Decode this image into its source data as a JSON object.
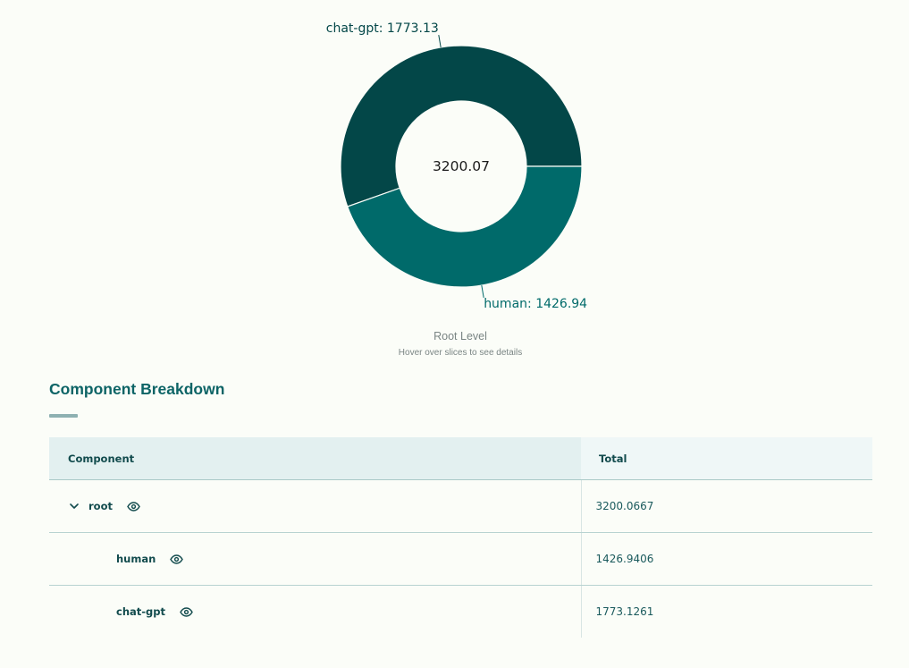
{
  "chart_data": {
    "type": "pie",
    "donut": true,
    "center_value": "3200.07",
    "slices": [
      {
        "label": "chat-gpt",
        "value": 1773.13,
        "display": "chat-gpt: 1773.13",
        "color": "#034748"
      },
      {
        "label": "human",
        "value": 1426.94,
        "display": "human: 1426.94",
        "color": "#006a6a"
      }
    ],
    "caption": "Root Level",
    "subcaption": "Hover over slices to see details"
  },
  "section": {
    "title": "Component Breakdown"
  },
  "table": {
    "headers": {
      "component": "Component",
      "total": "Total"
    },
    "rows": [
      {
        "name": "root",
        "total": "3200.0667",
        "expander": "chevron-down",
        "indent": 0
      },
      {
        "name": "human",
        "total": "1426.9406",
        "indent": 1
      },
      {
        "name": "chat-gpt",
        "total": "1773.1261",
        "indent": 1
      }
    ]
  },
  "colors": {
    "accent": "#0d6466",
    "dark": "#034748",
    "teal": "#006a6a",
    "background": "#fbfdf8"
  },
  "icons": {
    "row_action": "eye-icon",
    "expander": "chevron-down-icon"
  }
}
